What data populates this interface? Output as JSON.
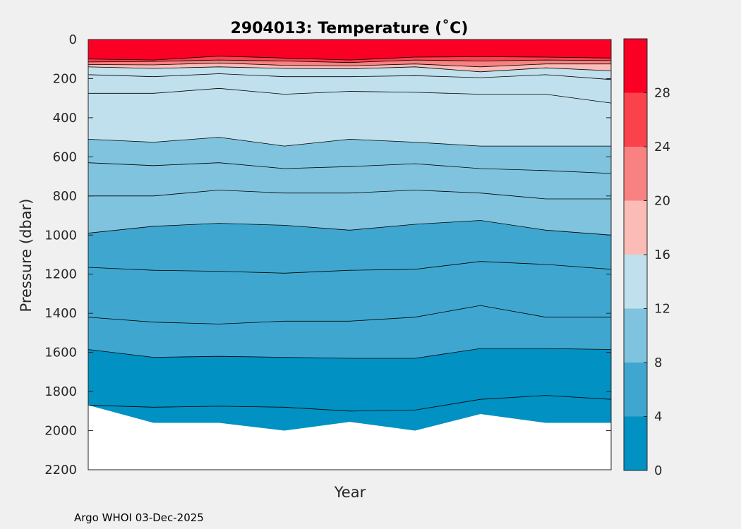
{
  "chart_data": {
    "type": "contourf",
    "title": "2904013:  Temperature (˚C)",
    "xlabel": "Year",
    "ylabel": "Pressure (dbar)",
    "ylim": [
      2200,
      0
    ],
    "yticks": [
      0,
      200,
      400,
      600,
      800,
      1000,
      1200,
      1400,
      1600,
      1800,
      2000,
      2200
    ],
    "xticks": [],
    "profiles_count": 9,
    "colorbar": {
      "ticks": [
        0,
        4,
        8,
        12,
        16,
        20,
        24,
        28
      ],
      "range": [
        0,
        32
      ],
      "levels": [
        {
          "min": 0,
          "max": 4,
          "color": "#0191c2"
        },
        {
          "min": 4,
          "max": 8,
          "color": "#3fa7cf"
        },
        {
          "min": 8,
          "max": 12,
          "color": "#7fc3de"
        },
        {
          "min": 12,
          "max": 16,
          "color": "#bfe0ec"
        },
        {
          "min": 16,
          "max": 20,
          "color": "#fbbcb7"
        },
        {
          "min": 20,
          "max": 24,
          "color": "#f88182"
        },
        {
          "min": 24,
          "max": 28,
          "color": "#f9424b"
        },
        {
          "min": 28,
          "max": 32,
          "color": "#fb0025"
        }
      ]
    },
    "contours": [
      {
        "level": 28,
        "pressures": [
          100,
          105,
          85,
          95,
          105,
          90,
          88,
          90,
          95
        ]
      },
      {
        "level": 24,
        "pressures": [
          115,
          112,
          105,
          110,
          118,
          105,
          110,
          105,
          108
        ]
      },
      {
        "level": 20,
        "pressures": [
          128,
          130,
          120,
          132,
          135,
          125,
          140,
          125,
          125
        ]
      },
      {
        "level": 16,
        "pressures": [
          140,
          148,
          140,
          148,
          150,
          140,
          165,
          145,
          160
        ]
      },
      {
        "level": 15,
        "pressures": [
          180,
          190,
          175,
          190,
          190,
          185,
          195,
          180,
          205
        ]
      },
      {
        "level": 14,
        "pressures": [
          275,
          275,
          250,
          280,
          265,
          270,
          280,
          280,
          325
        ]
      },
      {
        "level": 12,
        "pressures": [
          510,
          525,
          500,
          545,
          510,
          525,
          545,
          545,
          545
        ]
      },
      {
        "level": 11,
        "pressures": [
          630,
          645,
          630,
          660,
          650,
          635,
          660,
          670,
          685
        ]
      },
      {
        "level": 10,
        "pressures": [
          800,
          800,
          770,
          785,
          785,
          770,
          785,
          815,
          815
        ]
      },
      {
        "level": 8,
        "pressures": [
          990,
          955,
          940,
          950,
          975,
          945,
          925,
          975,
          1000
        ]
      },
      {
        "level": 6,
        "pressures": [
          1165,
          1180,
          1185,
          1195,
          1180,
          1175,
          1135,
          1150,
          1175
        ]
      },
      {
        "level": 5,
        "pressures": [
          1420,
          1445,
          1455,
          1440,
          1440,
          1420,
          1360,
          1420,
          1420
        ]
      },
      {
        "level": 4,
        "pressures": [
          1585,
          1625,
          1620,
          1625,
          1630,
          1630,
          1580,
          1580,
          1585
        ]
      },
      {
        "level": 3,
        "pressures": [
          1870,
          1880,
          1875,
          1880,
          1900,
          1895,
          1840,
          1820,
          1840
        ]
      }
    ],
    "max_depth_by_profile": [
      1870,
      1960,
      1960,
      2000,
      1955,
      2000,
      1915,
      1960,
      1960
    ]
  },
  "footer": "Argo WHOI 03-Dec-2025"
}
